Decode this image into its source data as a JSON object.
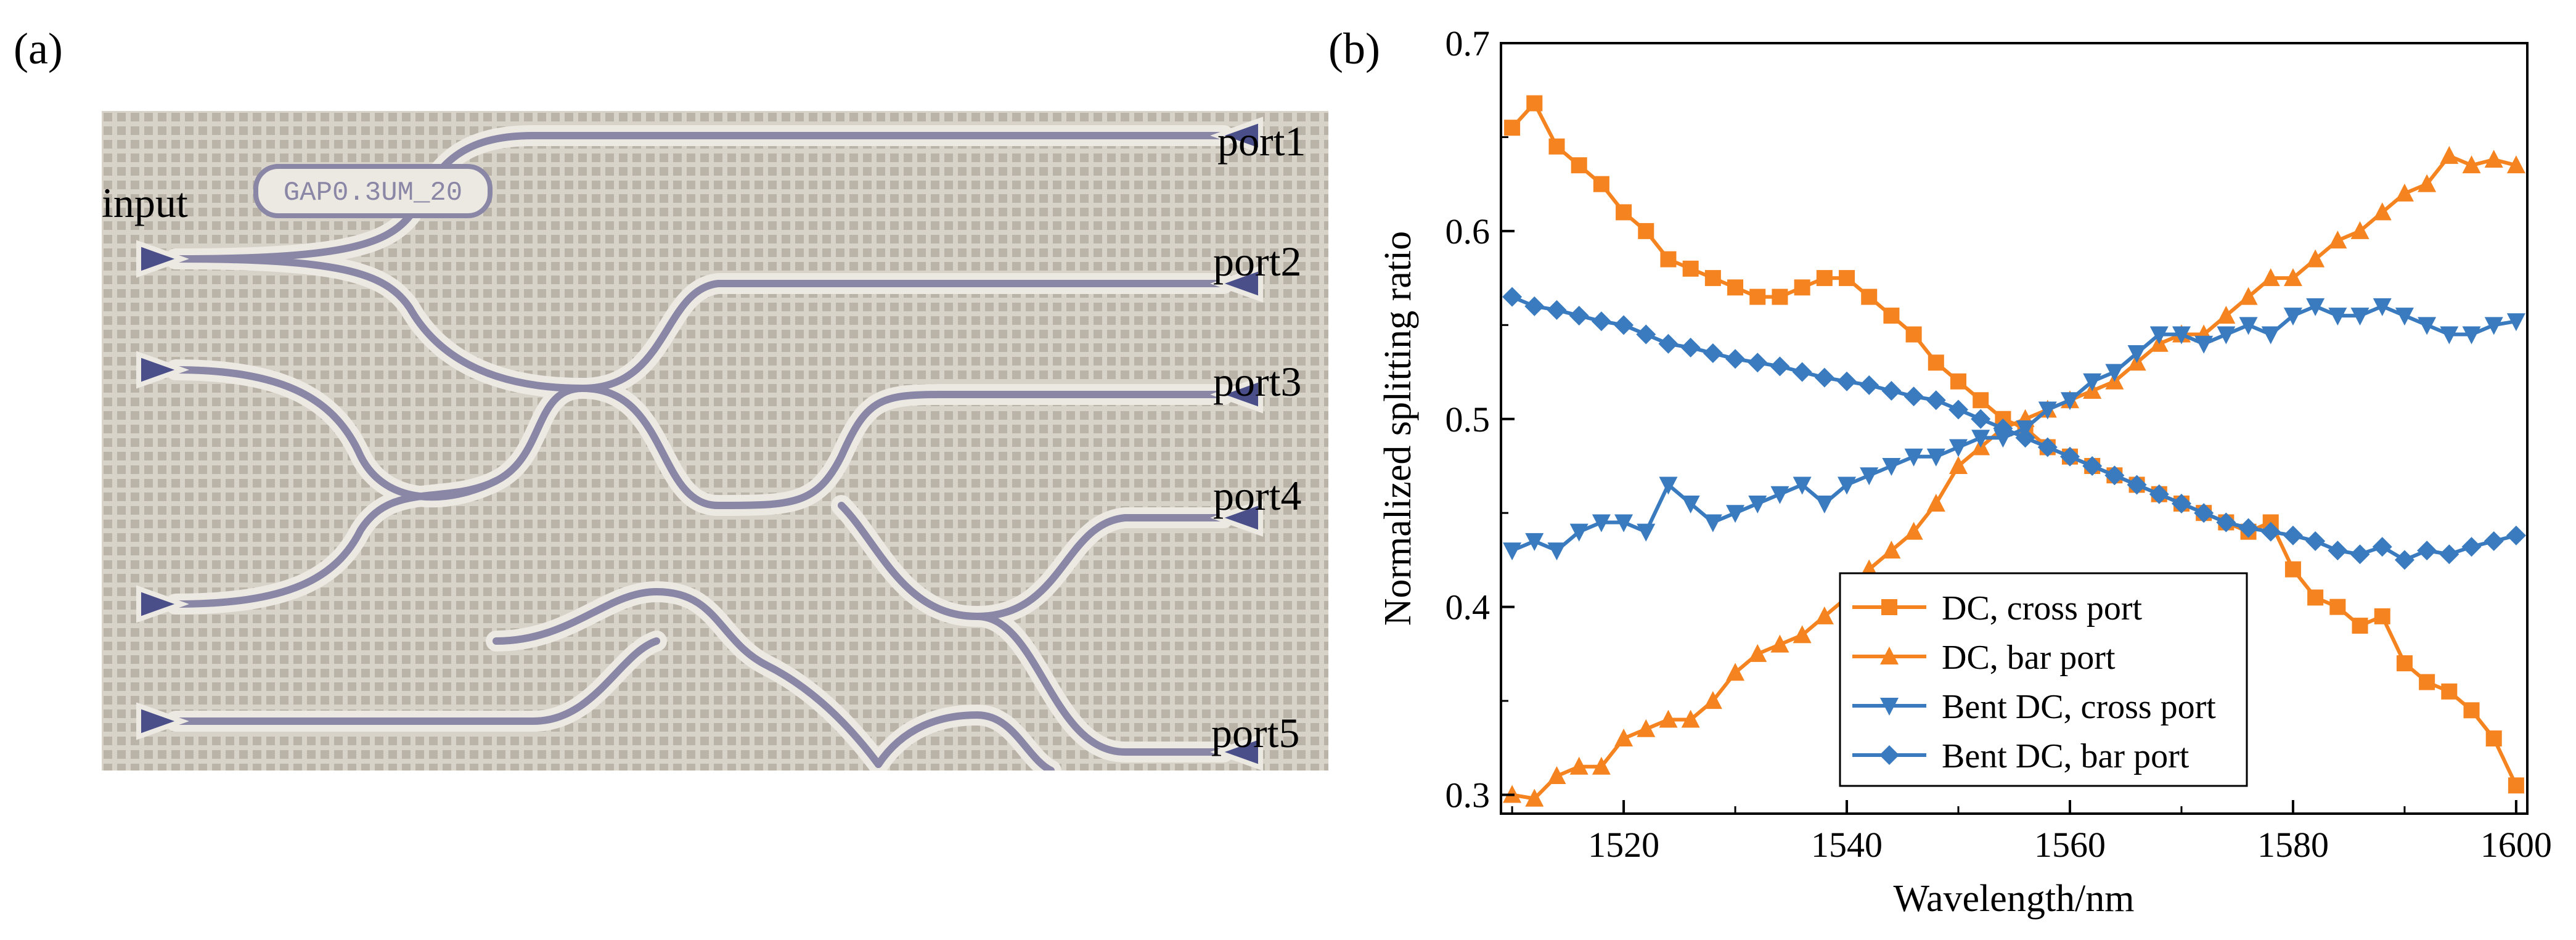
{
  "panels": {
    "a_label": "(a)",
    "b_label": "(b)"
  },
  "photo": {
    "chip_marking": "GAP0.3UM_20",
    "input_label": "input",
    "port_labels": [
      "port1",
      "port2",
      "port3",
      "port4",
      "port5"
    ]
  },
  "colors": {
    "orange": "#f5831f",
    "blue": "#3a7bbf",
    "chip_bg": "#cfc9bf",
    "waveguide": "#8a86a6"
  },
  "chart_data": {
    "type": "line",
    "title": "",
    "xlabel": "Wavelength/nm",
    "ylabel": "Normalized splitting ratio",
    "xlim": [
      1509,
      1601
    ],
    "ylim": [
      0.29,
      0.7
    ],
    "xticks": [
      1520,
      1540,
      1560,
      1580,
      1600
    ],
    "yticks": [
      0.3,
      0.4,
      0.5,
      0.6,
      0.7
    ],
    "xtick_labels": [
      "1520",
      "1540",
      "1560",
      "1580",
      "1600"
    ],
    "ytick_labels": [
      "0.3",
      "0.4",
      "0.5",
      "0.6",
      "0.7"
    ],
    "legend_position": "bottom-center",
    "x": [
      1510,
      1512,
      1514,
      1516,
      1518,
      1520,
      1522,
      1524,
      1526,
      1528,
      1530,
      1532,
      1534,
      1536,
      1538,
      1540,
      1542,
      1544,
      1546,
      1548,
      1550,
      1552,
      1554,
      1556,
      1558,
      1560,
      1562,
      1564,
      1566,
      1568,
      1570,
      1572,
      1574,
      1576,
      1578,
      1580,
      1582,
      1584,
      1586,
      1588,
      1590,
      1592,
      1594,
      1596,
      1598,
      1600
    ],
    "series": [
      {
        "name": "DC, cross port",
        "color": "#f5831f",
        "marker": "square",
        "values": [
          0.655,
          0.668,
          0.645,
          0.635,
          0.625,
          0.61,
          0.6,
          0.585,
          0.58,
          0.575,
          0.57,
          0.565,
          0.565,
          0.57,
          0.575,
          0.575,
          0.565,
          0.555,
          0.545,
          0.53,
          0.52,
          0.51,
          0.5,
          0.495,
          0.485,
          0.48,
          0.475,
          0.47,
          0.465,
          0.46,
          0.455,
          0.45,
          0.445,
          0.44,
          0.445,
          0.42,
          0.405,
          0.4,
          0.39,
          0.395,
          0.37,
          0.36,
          0.355,
          0.345,
          0.33,
          0.305
        ]
      },
      {
        "name": "DC, bar port",
        "color": "#f5831f",
        "marker": "triangle-up",
        "values": [
          0.3,
          0.298,
          0.31,
          0.315,
          0.315,
          0.33,
          0.335,
          0.34,
          0.34,
          0.35,
          0.365,
          0.375,
          0.38,
          0.385,
          0.395,
          0.405,
          0.42,
          0.43,
          0.44,
          0.455,
          0.475,
          0.485,
          0.495,
          0.5,
          0.505,
          0.51,
          0.515,
          0.52,
          0.53,
          0.54,
          0.545,
          0.545,
          0.555,
          0.565,
          0.575,
          0.575,
          0.585,
          0.595,
          0.6,
          0.61,
          0.62,
          0.625,
          0.64,
          0.635,
          0.638,
          0.635
        ]
      },
      {
        "name": "Bent DC, cross port",
        "color": "#3a7bbf",
        "marker": "triangle-down",
        "values": [
          0.43,
          0.435,
          0.43,
          0.44,
          0.445,
          0.445,
          0.44,
          0.465,
          0.455,
          0.445,
          0.45,
          0.455,
          0.46,
          0.465,
          0.455,
          0.465,
          0.47,
          0.475,
          0.48,
          0.48,
          0.485,
          0.49,
          0.49,
          0.495,
          0.505,
          0.51,
          0.52,
          0.525,
          0.535,
          0.545,
          0.545,
          0.54,
          0.545,
          0.55,
          0.545,
          0.555,
          0.56,
          0.555,
          0.555,
          0.56,
          0.555,
          0.55,
          0.545,
          0.545,
          0.55,
          0.552
        ]
      },
      {
        "name": "Bent DC, bar port",
        "color": "#3a7bbf",
        "marker": "diamond",
        "values": [
          0.565,
          0.56,
          0.558,
          0.555,
          0.552,
          0.55,
          0.545,
          0.54,
          0.538,
          0.535,
          0.532,
          0.53,
          0.528,
          0.525,
          0.522,
          0.52,
          0.518,
          0.515,
          0.512,
          0.51,
          0.505,
          0.5,
          0.495,
          0.49,
          0.485,
          0.48,
          0.475,
          0.47,
          0.465,
          0.46,
          0.455,
          0.45,
          0.445,
          0.442,
          0.44,
          0.438,
          0.435,
          0.43,
          0.428,
          0.432,
          0.425,
          0.43,
          0.428,
          0.432,
          0.435,
          0.438
        ]
      }
    ]
  }
}
